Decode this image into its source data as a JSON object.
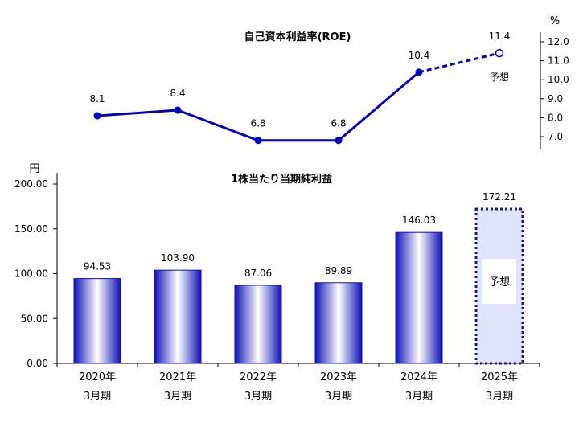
{
  "colors": {
    "line": "#0000c0",
    "bar_dark": "#1010b8",
    "bar_light": "#ffffff",
    "forecast_fill": "#dfe3fb",
    "forecast_border": "#1a1a8c",
    "axis": "#000000"
  },
  "chart_data": [
    {
      "type": "line",
      "title": "自己資本利益率(ROE)",
      "unit": "%",
      "ylim": [
        7.0,
        12.0
      ],
      "yticks": [
        "7.0",
        "8.0",
        "9.0",
        "10.0",
        "11.0",
        "12.0"
      ],
      "axis_position": "right",
      "categories": [
        "2020年3月期",
        "2021年3月期",
        "2022年3月期",
        "2023年3月期",
        "2024年3月期",
        "2025年3月期"
      ],
      "values": [
        8.1,
        8.4,
        6.8,
        6.8,
        10.4,
        11.4
      ],
      "value_labels": [
        "8.1",
        "8.4",
        "6.8",
        "6.8",
        "10.4",
        "11.4"
      ],
      "forecast_index": 5,
      "forecast_label": "予想",
      "grid": false
    },
    {
      "type": "bar",
      "title": "1株当たり当期純利益",
      "unit": "円",
      "ylim": [
        0,
        200
      ],
      "yticks": [
        "0.00",
        "50.00",
        "100.00",
        "150.00",
        "200.00"
      ],
      "axis_position": "left",
      "categories": [
        {
          "year": "2020年",
          "period": "3月期"
        },
        {
          "year": "2021年",
          "period": "3月期"
        },
        {
          "year": "2022年",
          "period": "3月期"
        },
        {
          "year": "2023年",
          "period": "3月期"
        },
        {
          "year": "2024年",
          "period": "3月期"
        },
        {
          "year": "2025年",
          "period": "3月期"
        }
      ],
      "values": [
        94.53,
        103.9,
        87.06,
        89.89,
        146.03,
        172.21
      ],
      "value_labels": [
        "94.53",
        "103.90",
        "87.06",
        "89.89",
        "146.03",
        "172.21"
      ],
      "forecast_index": 5,
      "forecast_label": "予想",
      "grid": false
    }
  ]
}
